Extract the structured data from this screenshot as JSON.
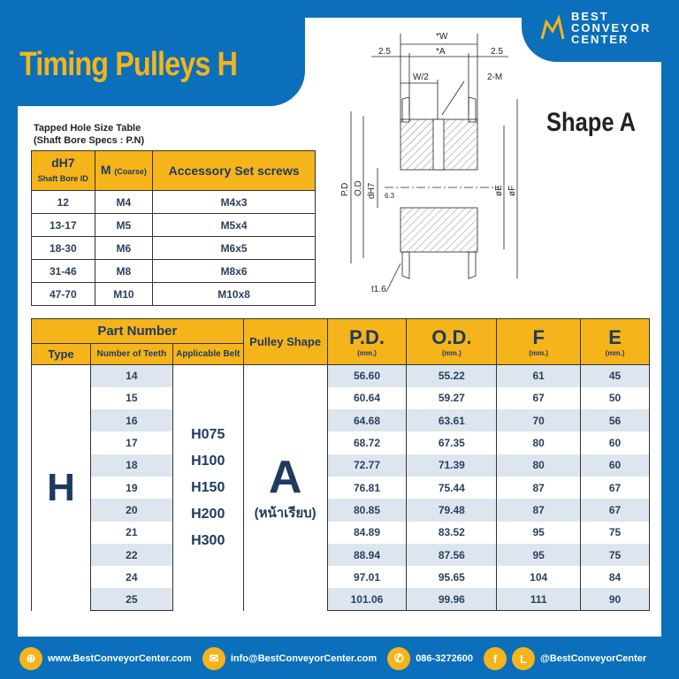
{
  "title": "Timing Pulleys H",
  "logo": {
    "line1": "BEST",
    "line2": "CONVEYOR",
    "line3": "CENTER"
  },
  "shape_label": "Shape A",
  "diagram": {
    "labels": [
      "*W",
      "*A",
      "2.5",
      "2.5",
      "W/2",
      "2-M",
      "P.D",
      "O.D",
      "dH7",
      "6.3",
      "øE",
      "øF",
      "t1.6"
    ]
  },
  "tapped_table": {
    "caption_1": "Tapped Hole Size Table",
    "caption_2": "(Shaft Bore Specs : P.N)",
    "headers": {
      "bore": "dH7",
      "bore_sub": "Shaft Bore ID",
      "m": "M",
      "m_sub": "(Coarse)",
      "screw": "Accessory Set screws"
    },
    "rows": [
      [
        "12",
        "M4",
        "M4x3"
      ],
      [
        "13-17",
        "M5",
        "M5x4"
      ],
      [
        "18-30",
        "M6",
        "M6x5"
      ],
      [
        "31-46",
        "M8",
        "M8x6"
      ],
      [
        "47-70",
        "M10",
        "M10x8"
      ]
    ]
  },
  "main_table": {
    "headers": {
      "part_number": "Part Number",
      "type": "Type",
      "teeth": "Number of Teeth",
      "belt": "Applicable Belt",
      "shape": "Pulley Shape",
      "pd": "P.D.",
      "od": "O.D.",
      "f": "F",
      "e": "E",
      "unit": "(mm.)"
    },
    "type": "H",
    "belts": [
      "H075",
      "H100",
      "H150",
      "H200",
      "H300"
    ],
    "shape": "A",
    "shape_sub": "(หน้าเรียบ)",
    "rows": [
      [
        "14",
        "56.60",
        "55.22",
        "61",
        "45"
      ],
      [
        "15",
        "60.64",
        "59.27",
        "67",
        "50"
      ],
      [
        "16",
        "64.68",
        "63.61",
        "70",
        "56"
      ],
      [
        "17",
        "68.72",
        "67.35",
        "80",
        "60"
      ],
      [
        "18",
        "72.77",
        "71.39",
        "80",
        "60"
      ],
      [
        "19",
        "76.81",
        "75.44",
        "87",
        "67"
      ],
      [
        "20",
        "80.85",
        "79.48",
        "87",
        "67"
      ],
      [
        "21",
        "84.89",
        "83.52",
        "95",
        "75"
      ],
      [
        "22",
        "88.94",
        "87.56",
        "95",
        "75"
      ],
      [
        "24",
        "97.01",
        "95.65",
        "104",
        "84"
      ],
      [
        "25",
        "101.06",
        "99.96",
        "111",
        "90"
      ]
    ]
  },
  "footer": {
    "web": "www.BestConveyorCenter.com",
    "email": "info@BestConveyorCenter.com",
    "phone": "086-3272600",
    "social": "@BestConveyorCenter"
  },
  "colors": {
    "brand_blue": "#0b6fbb",
    "accent_yellow": "#f5b41a"
  }
}
